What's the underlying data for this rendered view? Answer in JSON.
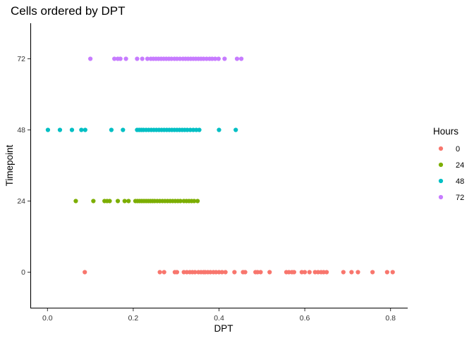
{
  "chart_data": {
    "type": "scatter",
    "title": "Cells ordered by DPT",
    "xlabel": "DPT",
    "ylabel": "Timepoint",
    "xlim": [
      -0.04,
      0.84
    ],
    "ylim": [
      -12,
      84
    ],
    "x_ticks": [
      0.0,
      0.2,
      0.4,
      0.6,
      0.8
    ],
    "x_tick_labels": [
      "0.0",
      "0.2",
      "0.4",
      "0.6",
      "0.8"
    ],
    "y_ticks": [
      0,
      24,
      48,
      72
    ],
    "y_tick_labels": [
      "0",
      "24",
      "48",
      "72"
    ],
    "grid": false,
    "legend": {
      "title": "Hours",
      "position": "right",
      "entries": [
        "0",
        "24",
        "48",
        "72"
      ]
    },
    "series": [
      {
        "name": "0",
        "color": "#F8766D",
        "y": 0,
        "x": [
          0.087,
          0.262,
          0.272,
          0.297,
          0.302,
          0.318,
          0.325,
          0.332,
          0.338,
          0.344,
          0.352,
          0.358,
          0.364,
          0.368,
          0.374,
          0.38,
          0.387,
          0.393,
          0.4,
          0.407,
          0.415,
          0.436,
          0.456,
          0.461,
          0.485,
          0.49,
          0.497,
          0.518,
          0.557,
          0.563,
          0.57,
          0.575,
          0.593,
          0.6,
          0.611,
          0.624,
          0.631,
          0.638,
          0.644,
          0.651,
          0.69,
          0.709,
          0.724,
          0.758,
          0.792,
          0.805
        ]
      },
      {
        "name": "24",
        "color": "#7CAE00",
        "y": 24,
        "x": [
          0.066,
          0.107,
          0.133,
          0.139,
          0.145,
          0.164,
          0.18,
          0.189,
          0.205,
          0.21,
          0.215,
          0.22,
          0.225,
          0.23,
          0.235,
          0.24,
          0.245,
          0.25,
          0.256,
          0.262,
          0.268,
          0.274,
          0.28,
          0.286,
          0.292,
          0.298,
          0.304,
          0.31,
          0.318,
          0.324,
          0.33,
          0.336,
          0.342,
          0.35
        ]
      },
      {
        "name": "48",
        "color": "#00BFC4",
        "y": 48,
        "x": [
          0.001,
          0.029,
          0.057,
          0.079,
          0.088,
          0.149,
          0.176,
          0.209,
          0.214,
          0.219,
          0.224,
          0.23,
          0.236,
          0.242,
          0.248,
          0.254,
          0.26,
          0.266,
          0.272,
          0.278,
          0.284,
          0.29,
          0.296,
          0.302,
          0.308,
          0.314,
          0.32,
          0.326,
          0.333,
          0.34,
          0.347,
          0.354,
          0.4,
          0.439
        ]
      },
      {
        "name": "72",
        "color": "#C77CFF",
        "y": 72,
        "x": [
          0.1,
          0.156,
          0.164,
          0.17,
          0.183,
          0.209,
          0.221,
          0.233,
          0.241,
          0.247,
          0.253,
          0.259,
          0.265,
          0.271,
          0.277,
          0.283,
          0.289,
          0.296,
          0.302,
          0.309,
          0.316,
          0.322,
          0.328,
          0.334,
          0.34,
          0.346,
          0.352,
          0.358,
          0.364,
          0.371,
          0.378,
          0.384,
          0.391,
          0.399,
          0.413,
          0.442,
          0.452
        ]
      }
    ]
  }
}
